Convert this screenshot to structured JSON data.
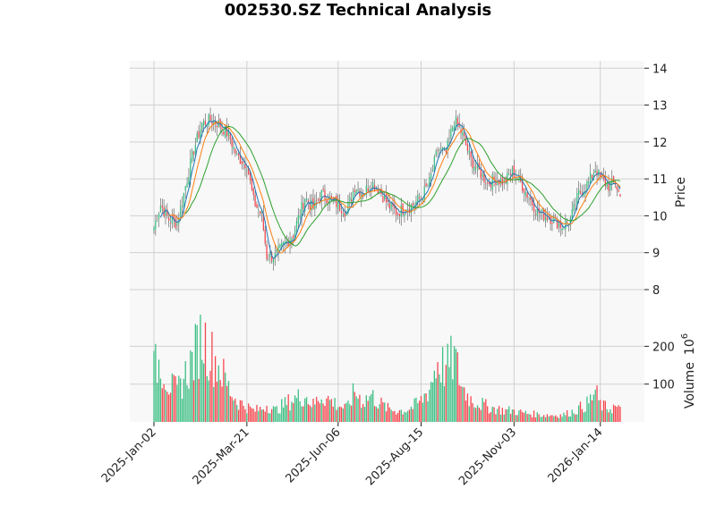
{
  "chart_data": {
    "type": "candlestick",
    "title": "002530.SZ Technical Analysis",
    "x_tick_labels": [
      "2025-Jan-02",
      "2025-Mar-21",
      "2025-Jun-06",
      "2025-Aug-15",
      "2025-Nov-03",
      "2026-Jan-14"
    ],
    "price_panel": {
      "ylabel": "Price",
      "yticks": [
        8,
        9,
        10,
        11,
        12,
        13,
        14
      ],
      "ylim": [
        7.2,
        14.2
      ],
      "grid": true,
      "moving_averages": [
        {
          "color": "#1f77b4"
        },
        {
          "color": "#ff7f0e"
        },
        {
          "color": "#2ca02c"
        }
      ]
    },
    "volume_panel": {
      "ylabel": "Volume",
      "scale_label": "10",
      "scale_exponent": "6",
      "yticks": [
        100,
        200
      ],
      "ylim": [
        0,
        260
      ],
      "grid": true
    },
    "colors": {
      "up": "#3dbf84",
      "down": "#f5474f",
      "panel_bg": "#f8f8f8",
      "grid": "#d0d0d0"
    },
    "date_range": [
      "2025-01-02",
      "2026-01-30"
    ],
    "close_anchors": [
      [
        "2025-01-02",
        9.7
      ],
      [
        "2025-01-08",
        10.3
      ],
      [
        "2025-01-15",
        9.9
      ],
      [
        "2025-01-22",
        9.8
      ],
      [
        "2025-02-05",
        11.8
      ],
      [
        "2025-02-12",
        12.5
      ],
      [
        "2025-02-19",
        12.6
      ],
      [
        "2025-02-26",
        12.5
      ],
      [
        "2025-03-06",
        12.2
      ],
      [
        "2025-03-13",
        11.6
      ],
      [
        "2025-03-21",
        11.4
      ],
      [
        "2025-03-27",
        10.4
      ],
      [
        "2025-04-03",
        10.0
      ],
      [
        "2025-04-08",
        8.9
      ],
      [
        "2025-04-15",
        8.9
      ],
      [
        "2025-04-22",
        9.2
      ],
      [
        "2025-04-30",
        9.5
      ],
      [
        "2025-05-09",
        10.5
      ],
      [
        "2025-05-16",
        10.2
      ],
      [
        "2025-05-23",
        10.6
      ],
      [
        "2025-06-06",
        10.3
      ],
      [
        "2025-06-13",
        10.1
      ],
      [
        "2025-06-20",
        10.8
      ],
      [
        "2025-06-27",
        10.6
      ],
      [
        "2025-07-04",
        10.9
      ],
      [
        "2025-07-11",
        10.7
      ],
      [
        "2025-07-18",
        10.3
      ],
      [
        "2025-07-25",
        10.1
      ],
      [
        "2025-08-01",
        10.2
      ],
      [
        "2025-08-08",
        10.3
      ],
      [
        "2025-08-15",
        10.5
      ],
      [
        "2025-08-22",
        10.9
      ],
      [
        "2025-08-29",
        11.8
      ],
      [
        "2025-09-05",
        11.7
      ],
      [
        "2025-09-12",
        12.6
      ],
      [
        "2025-09-19",
        12.2
      ],
      [
        "2025-09-26",
        11.5
      ],
      [
        "2025-10-10",
        10.9
      ],
      [
        "2025-10-17",
        11.0
      ],
      [
        "2025-10-24",
        10.9
      ],
      [
        "2025-10-31",
        11.2
      ],
      [
        "2025-11-07",
        10.9
      ],
      [
        "2025-11-14",
        10.5
      ],
      [
        "2025-11-21",
        10.1
      ],
      [
        "2025-11-28",
        10.0
      ],
      [
        "2025-12-05",
        9.9
      ],
      [
        "2025-12-12",
        9.7
      ],
      [
        "2025-12-19",
        9.9
      ],
      [
        "2025-12-26",
        10.6
      ],
      [
        "2026-01-05",
        10.9
      ],
      [
        "2026-01-09",
        11.3
      ],
      [
        "2026-01-14",
        11.0
      ],
      [
        "2026-01-21",
        10.8
      ],
      [
        "2026-01-27",
        10.9
      ],
      [
        "2026-01-30",
        10.5
      ]
    ],
    "volume_anchors": [
      [
        "2025-01-02",
        140
      ],
      [
        "2025-01-08",
        160
      ],
      [
        "2025-01-15",
        100
      ],
      [
        "2025-01-22",
        80
      ],
      [
        "2025-02-05",
        170
      ],
      [
        "2025-02-12",
        230
      ],
      [
        "2025-02-19",
        180
      ],
      [
        "2025-02-26",
        150
      ],
      [
        "2025-03-06",
        90
      ],
      [
        "2025-03-13",
        55
      ],
      [
        "2025-03-21",
        40
      ],
      [
        "2025-03-27",
        30
      ],
      [
        "2025-04-03",
        35
      ],
      [
        "2025-04-08",
        45
      ],
      [
        "2025-04-15",
        30
      ],
      [
        "2025-04-22",
        45
      ],
      [
        "2025-04-30",
        60
      ],
      [
        "2025-05-09",
        70
      ],
      [
        "2025-05-16",
        45
      ],
      [
        "2025-05-23",
        70
      ],
      [
        "2025-06-06",
        45
      ],
      [
        "2025-06-13",
        35
      ],
      [
        "2025-06-20",
        80
      ],
      [
        "2025-06-27",
        55
      ],
      [
        "2025-07-04",
        70
      ],
      [
        "2025-07-11",
        50
      ],
      [
        "2025-07-18",
        35
      ],
      [
        "2025-07-25",
        30
      ],
      [
        "2025-08-01",
        30
      ],
      [
        "2025-08-08",
        40
      ],
      [
        "2025-08-15",
        55
      ],
      [
        "2025-08-22",
        90
      ],
      [
        "2025-08-29",
        160
      ],
      [
        "2025-09-05",
        140
      ],
      [
        "2025-09-12",
        170
      ],
      [
        "2025-09-19",
        90
      ],
      [
        "2025-09-26",
        60
      ],
      [
        "2025-10-10",
        40
      ],
      [
        "2025-10-17",
        35
      ],
      [
        "2025-10-24",
        30
      ],
      [
        "2025-10-31",
        30
      ],
      [
        "2025-11-07",
        25
      ],
      [
        "2025-11-14",
        22
      ],
      [
        "2025-11-21",
        20
      ],
      [
        "2025-11-28",
        18
      ],
      [
        "2025-12-05",
        18
      ],
      [
        "2025-12-12",
        18
      ],
      [
        "2025-12-19",
        25
      ],
      [
        "2025-12-26",
        35
      ],
      [
        "2026-01-05",
        50
      ],
      [
        "2026-01-09",
        80
      ],
      [
        "2026-01-14",
        45
      ],
      [
        "2026-01-21",
        35
      ],
      [
        "2026-01-27",
        40
      ],
      [
        "2026-01-30",
        30
      ]
    ]
  }
}
